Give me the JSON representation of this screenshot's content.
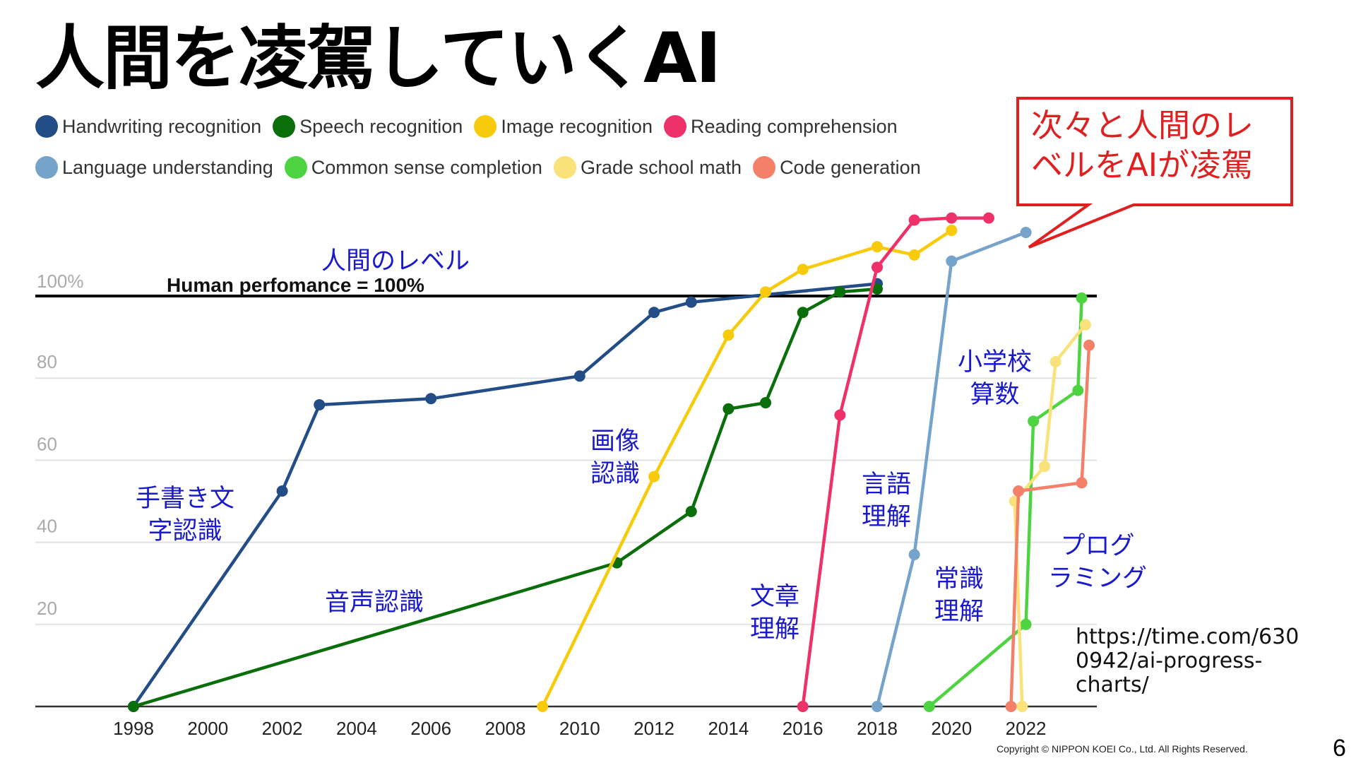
{
  "title": "人間を凌駕していくAI",
  "callout": {
    "line1": "次々と人間のレ",
    "line2": "ベルをAIが凌駕",
    "color": "#e02020"
  },
  "source": {
    "line1": "https://time.com/630",
    "line2": "0942/ai-progress-",
    "line3": "charts/"
  },
  "copyright": "Copyright © NIPPON KOEI Co., Ltd.  All Rights Reserved.",
  "page_number": "6",
  "annotations": {
    "human_level": "人間のレベル",
    "handwriting_1": "手書き文",
    "handwriting_2": "字認識",
    "speech": "音声認識",
    "image_1": "画像",
    "image_2": "認識",
    "reading_1": "文章",
    "reading_2": "理解",
    "language_1": "言語",
    "language_2": "理解",
    "common_1": "常識",
    "common_2": "理解",
    "math_1": "小学校",
    "math_2": "算数",
    "code_1": "プログ",
    "code_2": "ラミング"
  },
  "chart_data": {
    "type": "line",
    "title": "",
    "xlabel": "",
    "ylabel": "",
    "xlim": [
      1995.3,
      2023.8
    ],
    "ylim": [
      0,
      100
    ],
    "x_ticks": [
      1998,
      2000,
      2002,
      2004,
      2006,
      2008,
      2010,
      2012,
      2014,
      2016,
      2018,
      2020,
      2022
    ],
    "y_ticks": [
      {
        "value": 20,
        "label": "20"
      },
      {
        "value": 40,
        "label": "40"
      },
      {
        "value": 60,
        "label": "60"
      },
      {
        "value": 80,
        "label": "80"
      },
      {
        "value": 100,
        "label": "100%"
      }
    ],
    "grid": true,
    "legend_position": "top",
    "reference_line": {
      "value": 100,
      "label": "Human perfomance = 100%"
    },
    "series": [
      {
        "name": "Handwriting recognition",
        "color": "#234d87",
        "points": [
          [
            1998,
            0
          ],
          [
            2002,
            52.5
          ],
          [
            2003,
            73.5
          ],
          [
            2006,
            75
          ],
          [
            2010,
            80.5
          ],
          [
            2012,
            96
          ],
          [
            2013,
            98.5
          ],
          [
            2018,
            103
          ]
        ]
      },
      {
        "name": "Speech recognition",
        "color": "#0a6e0a",
        "points": [
          [
            1998,
            0
          ],
          [
            2011,
            35
          ],
          [
            2013,
            47.5
          ],
          [
            2014,
            72.5
          ],
          [
            2015,
            74
          ],
          [
            2016,
            96
          ],
          [
            2017,
            101
          ],
          [
            2018,
            101.7
          ]
        ]
      },
      {
        "name": "Image recognition",
        "color": "#f7cb0c",
        "points": [
          [
            2009,
            0
          ],
          [
            2012,
            56
          ],
          [
            2014,
            90.5
          ],
          [
            2015,
            101
          ],
          [
            2016,
            106.5
          ],
          [
            2018,
            112
          ],
          [
            2019,
            110
          ],
          [
            2020,
            116
          ]
        ]
      },
      {
        "name": "Reading comprehension",
        "color": "#ee3169",
        "points": [
          [
            2016,
            0
          ],
          [
            2017,
            71
          ],
          [
            2018,
            107
          ],
          [
            2019,
            118.5
          ],
          [
            2020,
            119
          ],
          [
            2021,
            119
          ]
        ]
      },
      {
        "name": "Language understanding",
        "color": "#76a3c9",
        "points": [
          [
            2018,
            0
          ],
          [
            2019,
            37
          ],
          [
            2020,
            108.5
          ],
          [
            2022,
            115.5
          ]
        ]
      },
      {
        "name": "Common sense completion",
        "color": "#4dd440",
        "points": [
          [
            2019.4,
            0
          ],
          [
            2022,
            20
          ],
          [
            2022.2,
            69.5
          ],
          [
            2023.4,
            77
          ],
          [
            2023.5,
            99.5
          ]
        ]
      },
      {
        "name": "Grade school math",
        "color": "#fae27a",
        "points": [
          [
            2021.9,
            0
          ],
          [
            2021.7,
            50
          ],
          [
            2022.5,
            58.5
          ],
          [
            2022.8,
            84
          ],
          [
            2023.6,
            93
          ]
        ]
      },
      {
        "name": "Code generation",
        "color": "#f5806a",
        "points": [
          [
            2021.6,
            0
          ],
          [
            2021.8,
            52.5
          ],
          [
            2023.5,
            54.5
          ],
          [
            2023.7,
            88
          ]
        ]
      }
    ]
  }
}
